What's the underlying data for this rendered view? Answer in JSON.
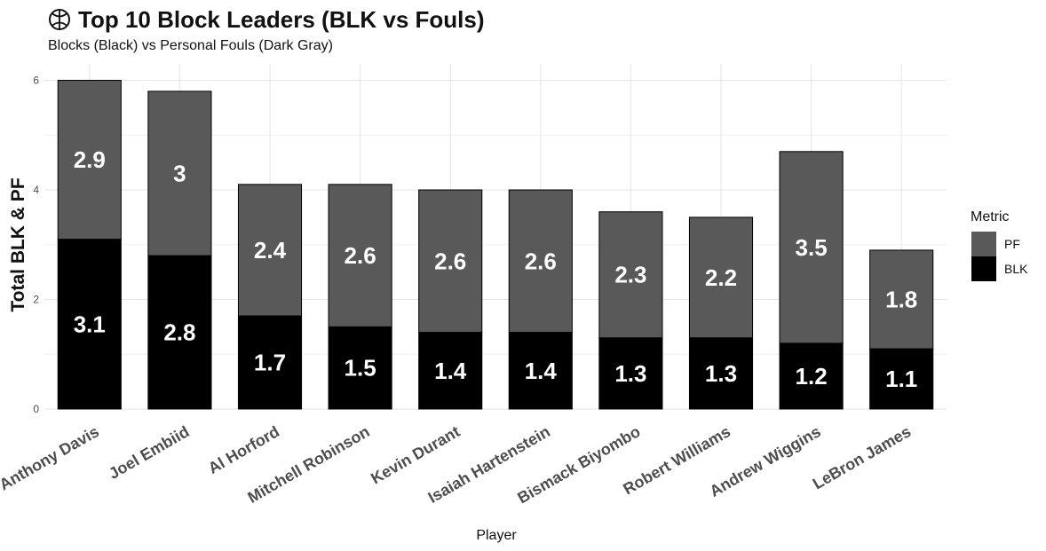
{
  "chart_data": {
    "type": "bar",
    "stacked": true,
    "title": "Top 10 Block Leaders (BLK vs Fouls)",
    "title_icon": "basketball-icon",
    "subtitle": "Blocks (Black) vs Personal Fouls (Dark Gray)",
    "xlabel": "Player",
    "ylabel": "Total BLK & PF",
    "ylim": [
      0,
      6.3
    ],
    "yticks": [
      0,
      2,
      4,
      6
    ],
    "grid": true,
    "legend": {
      "title": "Metric",
      "position": "right",
      "entries": [
        {
          "name": "PF",
          "color": "#595959"
        },
        {
          "name": "BLK",
          "color": "#000000"
        }
      ]
    },
    "categories": [
      "Anthony Davis",
      "Joel Embiid",
      "Al Horford",
      "Mitchell Robinson",
      "Kevin Durant",
      "Isaiah Hartenstein",
      "Bismack Biyombo",
      "Robert Williams",
      "Andrew Wiggins",
      "LeBron James"
    ],
    "series": [
      {
        "name": "BLK",
        "color": "#000000",
        "values": [
          3.1,
          2.8,
          1.7,
          1.5,
          1.4,
          1.4,
          1.3,
          1.3,
          1.2,
          1.1
        ]
      },
      {
        "name": "PF",
        "color": "#595959",
        "values": [
          2.9,
          3,
          2.4,
          2.6,
          2.6,
          2.6,
          2.3,
          2.2,
          3.5,
          1.8
        ]
      }
    ]
  }
}
